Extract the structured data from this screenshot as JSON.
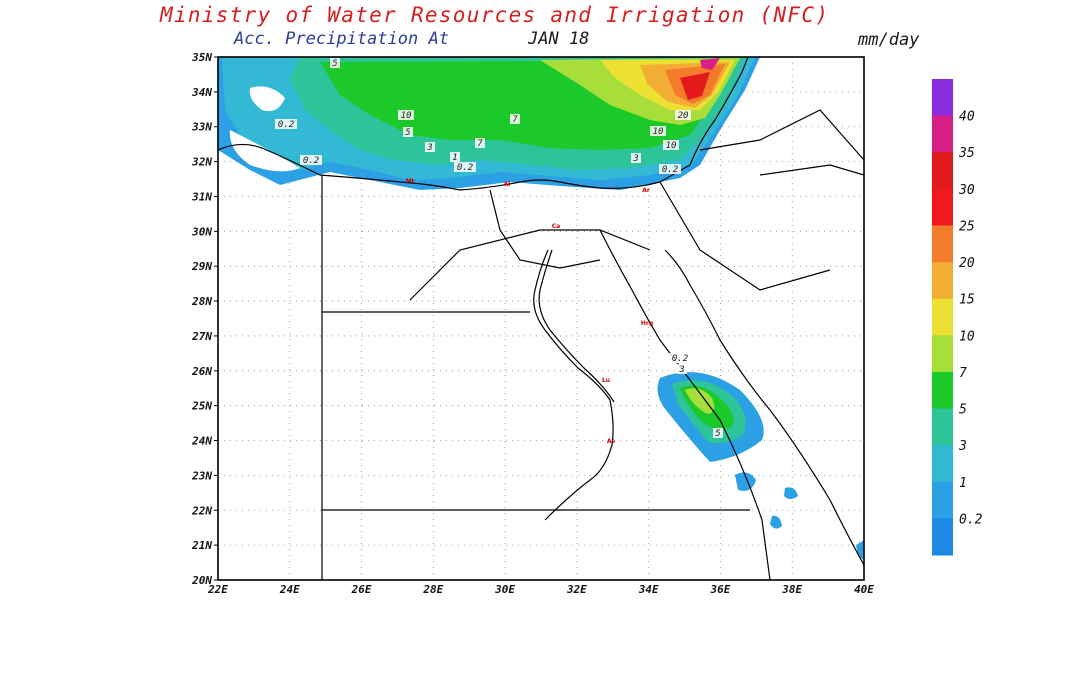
{
  "header": {
    "title": "Ministry of Water Resources and Irrigation (NFC)",
    "subtitle": "Acc. Precipitation  At",
    "date": "JAN 18",
    "units": "mm/day"
  },
  "map": {
    "lat_labels": [
      "35N",
      "34N",
      "33N",
      "32N",
      "31N",
      "30N",
      "29N",
      "28N",
      "27N",
      "26N",
      "25N",
      "24N",
      "23N",
      "22N",
      "21N",
      "20N"
    ],
    "lon_labels": [
      "22E",
      "24E",
      "26E",
      "28E",
      "30E",
      "32E",
      "34E",
      "36E",
      "38E",
      "40E"
    ],
    "contour_labels": [
      "5",
      "10",
      "7",
      "5",
      "3",
      "7",
      "10",
      "20",
      "0.2",
      "0.2",
      "0.2",
      "1",
      "0.2",
      "3",
      "10",
      "0.2",
      "3",
      "5"
    ],
    "city_markers": [
      "Mt",
      "Al",
      "Ca",
      "Ar",
      "Hrg",
      "Lu",
      "As"
    ]
  },
  "colorbar": {
    "levels": [
      "40",
      "35",
      "30",
      "25",
      "20",
      "15",
      "10",
      "7",
      "5",
      "3",
      "1",
      "0.2"
    ],
    "colors": [
      "#8a2be2",
      "#d91f86",
      "#e31a1c",
      "#f0191e",
      "#f47a2c",
      "#f2ad35",
      "#ede032",
      "#a8de3a",
      "#1cc92a",
      "#2ec49a",
      "#33b9d3",
      "#2ca0e5",
      "#1e88e5"
    ]
  }
}
